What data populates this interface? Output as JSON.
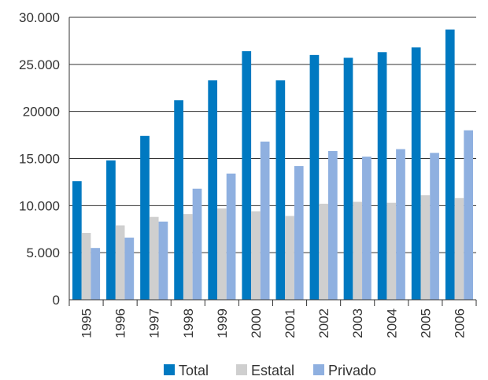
{
  "chart_data": {
    "type": "bar",
    "title": "",
    "xlabel": "",
    "ylabel": "",
    "categories": [
      "1995",
      "1996",
      "1997",
      "1998",
      "1999",
      "2000",
      "2001",
      "2002",
      "2003",
      "2004",
      "2005",
      "2006"
    ],
    "series": [
      {
        "name": "Total",
        "color": "#0079c1",
        "values": [
          12600,
          14800,
          17400,
          21200,
          23300,
          26400,
          23300,
          26000,
          25700,
          26300,
          26800,
          28700
        ]
      },
      {
        "name": "Estatal",
        "color": "#cfcfcf",
        "values": [
          7100,
          7900,
          8800,
          9100,
          9700,
          9400,
          8900,
          10200,
          10400,
          10300,
          11100,
          10800
        ]
      },
      {
        "name": "Privado",
        "color": "#8fb0e0",
        "values": [
          5500,
          6600,
          8300,
          11800,
          13400,
          16800,
          14200,
          15800,
          15200,
          16000,
          15600,
          18000
        ]
      }
    ],
    "ylim": [
      0,
      30000
    ],
    "yticks": [
      0,
      5000,
      10000,
      15000,
      20000,
      25000,
      30000
    ],
    "ytick_labels": [
      "0",
      "5.000",
      "10.000",
      "15.000",
      "20000",
      "25.000",
      "30.000"
    ],
    "grid": true,
    "legend_position": "bottom"
  }
}
